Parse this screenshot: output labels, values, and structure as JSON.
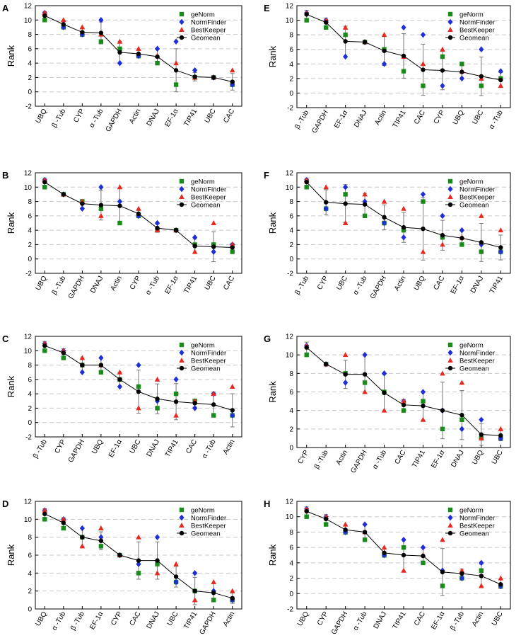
{
  "colors": {
    "geNorm": "#1a8a1a",
    "NormFinder": "#1f2fd6",
    "BestKeeper": "#e8291e",
    "Geomean": "#000000",
    "grid": "#c8c8c8",
    "errorbar": "#777777"
  },
  "chart_data": [
    {
      "type": "scatter",
      "panel": "A",
      "ylabel": "Rank",
      "ylim": [
        -2,
        12
      ],
      "yticks": [
        -2,
        0,
        2,
        4,
        6,
        8,
        10,
        12
      ],
      "grid": true,
      "legend_position": "top-right",
      "legend": [
        "geNorm",
        "NormFinder",
        "BestKeeper",
        "Geomean"
      ],
      "categories": [
        "UBQ",
        "β -Tub",
        "CYP",
        "α -Tub",
        "GAPDH",
        "Actin",
        "DNAJ",
        "EF-1α",
        "TIP41",
        "UBC",
        "CAC"
      ],
      "series": [
        {
          "name": "geNorm",
          "marker": "square",
          "values": [
            10,
            9,
            8,
            7,
            6,
            5,
            4,
            1,
            2,
            2,
            1
          ]
        },
        {
          "name": "NormFinder",
          "marker": "diamond",
          "values": [
            11,
            9,
            8,
            10,
            4,
            5,
            6,
            7,
            3,
            2,
            1
          ]
        },
        {
          "name": "BestKeeper",
          "marker": "triangle",
          "values": [
            11,
            10,
            9,
            8,
            7,
            6,
            5,
            4,
            2,
            2,
            3
          ]
        },
        {
          "name": "Geomean",
          "marker": "circle-line",
          "values": [
            10.6,
            9.4,
            8.3,
            8.2,
            5.5,
            5.3,
            4.9,
            3.0,
            2.1,
            2.0,
            1.4
          ]
        }
      ]
    },
    {
      "type": "scatter",
      "panel": "B",
      "ylabel": "Rank",
      "ylim": [
        -2,
        12
      ],
      "yticks": [
        -2,
        0,
        2,
        4,
        6,
        8,
        10,
        12
      ],
      "grid": true,
      "legend_position": "top-right",
      "legend": [
        "geNorm",
        "NormFinder",
        "BestKeeper",
        "Geomean"
      ],
      "categories": [
        "UBQ",
        "β -Tub",
        "GAPDH",
        "DNAJ",
        "Actin",
        "CYP",
        "α -Tub",
        "EF-1α",
        "TIP41",
        "UBC",
        "CAC"
      ],
      "series": [
        {
          "name": "geNorm",
          "marker": "square",
          "values": [
            10,
            9,
            8,
            7,
            5,
            6,
            4,
            4,
            2,
            2,
            1
          ]
        },
        {
          "name": "NormFinder",
          "marker": "diamond",
          "values": [
            11,
            9,
            7,
            10,
            8,
            6,
            5,
            4,
            3,
            1,
            2
          ]
        },
        {
          "name": "BestKeeper",
          "marker": "triangle",
          "values": [
            11,
            9,
            8,
            6,
            10,
            7,
            4,
            4,
            1,
            5,
            2
          ]
        },
        {
          "name": "Geomean",
          "marker": "circle-line",
          "values": [
            10.7,
            9.0,
            7.7,
            7.5,
            7.4,
            6.3,
            4.3,
            4.0,
            1.8,
            1.7,
            1.6
          ]
        }
      ]
    },
    {
      "type": "scatter",
      "panel": "C",
      "ylabel": "Rank",
      "ylim": [
        -2,
        12
      ],
      "yticks": [
        -2,
        0,
        2,
        4,
        6,
        8,
        10,
        12
      ],
      "grid": true,
      "legend_position": "top-right",
      "legend": [
        "geNorm",
        "NormFinder",
        "BestKeeper",
        "Geomean"
      ],
      "categories": [
        "β -Tub",
        "CYP",
        "GAPDH",
        "UBQ",
        "EF-1α",
        "UBC",
        "DNAJ",
        "TIP41",
        "CAC",
        "α -Tub",
        "Actin"
      ],
      "series": [
        {
          "name": "geNorm",
          "marker": "square",
          "values": [
            10,
            9,
            8,
            7,
            6,
            5,
            2,
            4,
            3,
            1,
            1
          ]
        },
        {
          "name": "NormFinder",
          "marker": "diamond",
          "values": [
            11,
            10,
            7,
            9,
            5,
            8,
            3,
            6,
            2,
            4,
            1
          ]
        },
        {
          "name": "BestKeeper",
          "marker": "triangle",
          "values": [
            11,
            10,
            9,
            8,
            7,
            2,
            6,
            1,
            3,
            4,
            5
          ]
        },
        {
          "name": "Geomean",
          "marker": "circle-line",
          "values": [
            10.7,
            9.7,
            8.0,
            8.0,
            6.0,
            4.3,
            3.3,
            2.9,
            2.7,
            2.5,
            1.7
          ]
        }
      ]
    },
    {
      "type": "scatter",
      "panel": "D",
      "ylabel": "Rank",
      "ylim": [
        0,
        12
      ],
      "yticks": [
        0,
        2,
        4,
        6,
        8,
        10,
        12
      ],
      "grid": true,
      "legend_position": "top-right",
      "legend": [
        "geNorm",
        "NormFinder",
        "BestKeeper",
        "Geomean"
      ],
      "categories": [
        "UBQ",
        "α -Tub",
        "β -Tub",
        "EF-1α",
        "CYP",
        "CAC",
        "DNAJ",
        "UBC",
        "TIP41",
        "GAPDH",
        "Actin"
      ],
      "series": [
        {
          "name": "geNorm",
          "marker": "square",
          "values": [
            10,
            9,
            8,
            7,
            6,
            4,
            5,
            3,
            2,
            1,
            1
          ]
        },
        {
          "name": "NormFinder",
          "marker": "diamond",
          "values": [
            11,
            10,
            9,
            8,
            6,
            5,
            8,
            3,
            4,
            2,
            1
          ]
        },
        {
          "name": "BestKeeper",
          "marker": "triangle",
          "values": [
            11,
            10,
            7,
            9,
            6,
            8,
            4,
            5,
            1,
            3,
            2
          ]
        },
        {
          "name": "Geomean",
          "marker": "circle-line",
          "values": [
            10.6,
            9.6,
            8.0,
            7.6,
            6.0,
            5.4,
            5.4,
            3.6,
            2.0,
            1.8,
            1.2
          ]
        }
      ]
    },
    {
      "type": "scatter",
      "panel": "E",
      "ylabel": "Rank",
      "ylim": [
        -2,
        12
      ],
      "yticks": [
        -2,
        0,
        2,
        4,
        6,
        8,
        10,
        12
      ],
      "grid": true,
      "legend_position": "top-right",
      "legend": [
        "geNorm",
        "NormFinder",
        "BestKeeper",
        "Geomean"
      ],
      "categories": [
        "β -Tub",
        "GAPDH",
        "EF-1α",
        "DNAJ",
        "Actin",
        "TIP41",
        "CAC",
        "CYP",
        "UBQ",
        "UBC",
        "α -Tub"
      ],
      "series": [
        {
          "name": "geNorm",
          "marker": "square",
          "values": [
            10,
            9,
            8,
            7,
            6,
            3,
            1,
            5,
            4,
            1,
            2
          ]
        },
        {
          "name": "NormFinder",
          "marker": "diamond",
          "values": [
            11,
            10,
            5,
            7,
            4,
            9,
            8,
            1,
            2,
            6,
            3
          ]
        },
        {
          "name": "BestKeeper",
          "marker": "triangle",
          "values": [
            11,
            10,
            9,
            7,
            8,
            5,
            4,
            6,
            3,
            2,
            1
          ]
        },
        {
          "name": "Geomean",
          "marker": "circle-line",
          "values": [
            10.8,
            9.7,
            7.1,
            7.0,
            5.8,
            5.1,
            3.2,
            3.1,
            2.9,
            2.3,
            1.8
          ]
        }
      ]
    },
    {
      "type": "scatter",
      "panel": "F",
      "ylabel": "Rank",
      "ylim": [
        -2,
        12
      ],
      "yticks": [
        -2,
        0,
        2,
        4,
        6,
        8,
        10,
        12
      ],
      "grid": true,
      "legend_position": "top-right",
      "legend": [
        "geNorm",
        "NormFinder",
        "BestKeeper",
        "Geomean"
      ],
      "categories": [
        "β -Tub",
        "CYP",
        "UBC",
        "α -Tub",
        "GAPDH",
        "Actin",
        "UBQ",
        "CAC",
        "EF-1α",
        "DNAJ",
        "TIP41"
      ],
      "series": [
        {
          "name": "geNorm",
          "marker": "square",
          "values": [
            10,
            7,
            9,
            6,
            5,
            4,
            8,
            3,
            2,
            1,
            1
          ]
        },
        {
          "name": "NormFinder",
          "marker": "diamond",
          "values": [
            11,
            7,
            10,
            8,
            5,
            3,
            9,
            6,
            4,
            2,
            1
          ]
        },
        {
          "name": "BestKeeper",
          "marker": "triangle",
          "values": [
            11,
            10,
            5,
            9,
            8,
            7,
            1,
            2,
            3,
            6,
            4
          ]
        },
        {
          "name": "Geomean",
          "marker": "circle-line",
          "values": [
            10.7,
            7.9,
            7.7,
            7.6,
            5.8,
            4.4,
            4.2,
            3.3,
            2.9,
            2.3,
            1.6
          ]
        }
      ]
    },
    {
      "type": "scatter",
      "panel": "G",
      "ylabel": "Rank",
      "ylim": [
        0,
        12
      ],
      "yticks": [
        0,
        2,
        4,
        6,
        8,
        10,
        12
      ],
      "grid": true,
      "legend_position": "top-right",
      "legend": [
        "geNorm",
        "NormFinder",
        "BestKeeper",
        "Geomean"
      ],
      "categories": [
        "CYP",
        "β -Tub",
        "Actin",
        "GAPDH",
        "α -Tub",
        "CAC",
        "TIP41",
        "EF-1α",
        "DNAJ",
        "UBQ",
        "UBC"
      ],
      "series": [
        {
          "name": "geNorm",
          "marker": "square",
          "values": [
            10,
            9,
            8,
            7,
            6,
            4,
            5,
            2,
            3,
            1,
            1
          ]
        },
        {
          "name": "NormFinder",
          "marker": "diamond",
          "values": [
            11,
            9,
            7,
            10,
            8,
            5,
            6,
            4,
            2,
            3,
            1
          ]
        },
        {
          "name": "BestKeeper",
          "marker": "triangle",
          "values": [
            11,
            9,
            10,
            6,
            4,
            5,
            3,
            8,
            7,
            1,
            2
          ]
        },
        {
          "name": "Geomean",
          "marker": "circle-line",
          "values": [
            10.8,
            9.0,
            7.9,
            7.9,
            5.9,
            4.6,
            4.5,
            4.0,
            3.5,
            1.4,
            1.3
          ]
        }
      ]
    },
    {
      "type": "scatter",
      "panel": "H",
      "ylabel": "Rank",
      "ylim": [
        -2,
        12
      ],
      "yticks": [
        -2,
        0,
        2,
        4,
        6,
        8,
        10,
        12
      ],
      "grid": true,
      "legend_position": "top-right",
      "legend": [
        "geNorm",
        "NormFinder",
        "BestKeeper",
        "Geomean"
      ],
      "categories": [
        "UBQ",
        "CYP",
        "GAPDH",
        "α -Tub",
        "DNAJ",
        "TIP41",
        "CAC",
        "EF-1α",
        "β -Tub",
        "Actin",
        "UBC"
      ],
      "series": [
        {
          "name": "geNorm",
          "marker": "square",
          "values": [
            10,
            9,
            8,
            7,
            5,
            6,
            4,
            1,
            2,
            3,
            1
          ]
        },
        {
          "name": "NormFinder",
          "marker": "diamond",
          "values": [
            11,
            10,
            8,
            9,
            5,
            7,
            6,
            3,
            2,
            4,
            1
          ]
        },
        {
          "name": "BestKeeper",
          "marker": "triangle",
          "values": [
            11,
            10,
            9,
            8,
            6,
            3,
            5,
            7,
            3,
            1,
            2
          ]
        },
        {
          "name": "Geomean",
          "marker": "circle-line",
          "values": [
            10.7,
            9.7,
            8.3,
            8.0,
            5.3,
            5.0,
            4.9,
            2.8,
            2.6,
            2.3,
            1.2
          ]
        }
      ]
    }
  ]
}
